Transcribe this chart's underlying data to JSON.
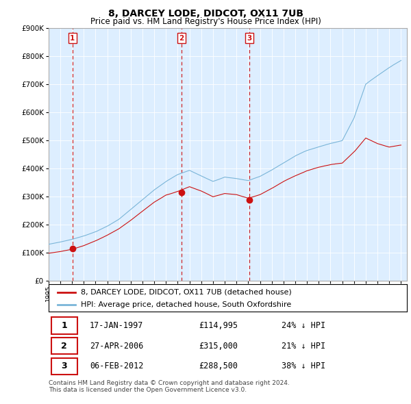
{
  "title": "8, DARCEY LODE, DIDCOT, OX11 7UB",
  "subtitle": "Price paid vs. HM Land Registry's House Price Index (HPI)",
  "legend_label_red": "8, DARCEY LODE, DIDCOT, OX11 7UB (detached house)",
  "legend_label_blue": "HPI: Average price, detached house, South Oxfordshire",
  "footer_line1": "Contains HM Land Registry data © Crown copyright and database right 2024.",
  "footer_line2": "This data is licensed under the Open Government Licence v3.0.",
  "transactions": [
    {
      "num": 1,
      "date": "17-JAN-1997",
      "price": "£114,995",
      "hpi": "24% ↓ HPI",
      "year": 1997.04
    },
    {
      "num": 2,
      "date": "27-APR-2006",
      "price": "£315,000",
      "hpi": "21% ↓ HPI",
      "year": 2006.32
    },
    {
      "num": 3,
      "date": "06-FEB-2012",
      "price": "£288,500",
      "hpi": "38% ↓ HPI",
      "year": 2012.1
    }
  ],
  "transaction_prices": [
    114995,
    315000,
    288500
  ],
  "hpi_line_color": "#7ab5d8",
  "price_line_color": "#cc1111",
  "vline_color": "#cc1111",
  "background_color": "#ffffff",
  "plot_bg_color": "#ddeeff",
  "grid_color": "#ffffff",
  "ylim": [
    0,
    900000
  ],
  "yticks": [
    0,
    100000,
    200000,
    300000,
    400000,
    500000,
    600000,
    700000,
    800000,
    900000
  ],
  "xlim_start": 1995.0,
  "xlim_end": 2025.5
}
